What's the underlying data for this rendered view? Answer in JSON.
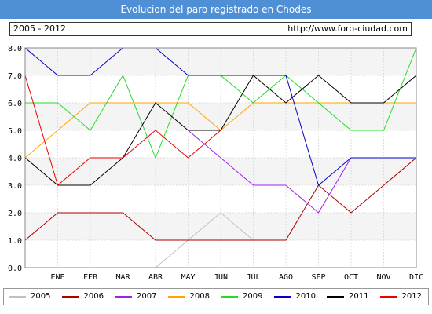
{
  "header": {
    "title": "Evolucion del paro registrado en Chodes",
    "range": "2005 - 2012",
    "url": "http://www.foro-ciudad.com"
  },
  "chart_data": {
    "type": "line",
    "categories": [
      "",
      "ENE",
      "FEB",
      "MAR",
      "ABR",
      "MAY",
      "JUN",
      "JUL",
      "AGO",
      "SEP",
      "OCT",
      "NOV",
      "DIC"
    ],
    "y_ticks": [
      "0.0",
      "1.0",
      "2.0",
      "3.0",
      "4.0",
      "5.0",
      "6.0",
      "7.0",
      "8.0"
    ],
    "ylim": [
      0,
      8
    ],
    "grid": true,
    "legend_position": "bottom",
    "series": [
      {
        "name": "2005",
        "color": "#c0c0c0",
        "values": [
          null,
          null,
          null,
          null,
          0,
          1,
          2,
          1,
          null,
          null,
          null,
          null,
          null
        ]
      },
      {
        "name": "2006",
        "color": "#aa0000",
        "values": [
          1,
          2,
          2,
          2,
          1,
          1,
          1,
          1,
          1,
          3,
          2,
          3,
          4
        ]
      },
      {
        "name": "2007",
        "color": "#a020f0",
        "values": [
          null,
          null,
          null,
          null,
          null,
          5,
          4,
          3,
          3,
          2,
          4,
          4,
          4
        ]
      },
      {
        "name": "2008",
        "color": "#ffa500",
        "values": [
          4,
          5,
          6,
          6,
          6,
          6,
          5,
          6,
          6,
          6,
          6,
          6,
          6
        ]
      },
      {
        "name": "2009",
        "color": "#22dd22",
        "values": [
          6,
          6,
          5,
          7,
          4,
          7,
          7,
          6,
          7,
          6,
          5,
          5,
          8
        ]
      },
      {
        "name": "2010",
        "color": "#0000cc",
        "values": [
          8,
          7,
          7,
          8,
          8,
          7,
          7,
          7,
          7,
          3,
          4,
          4,
          4
        ]
      },
      {
        "name": "2011",
        "color": "#000000",
        "values": [
          4,
          3,
          3,
          4,
          6,
          5,
          5,
          7,
          6,
          7,
          6,
          6,
          7
        ]
      },
      {
        "name": "2012",
        "color": "#ee0000",
        "values": [
          7,
          3,
          4,
          4,
          5,
          4,
          5,
          null,
          null,
          null,
          null,
          null,
          null
        ]
      }
    ]
  }
}
